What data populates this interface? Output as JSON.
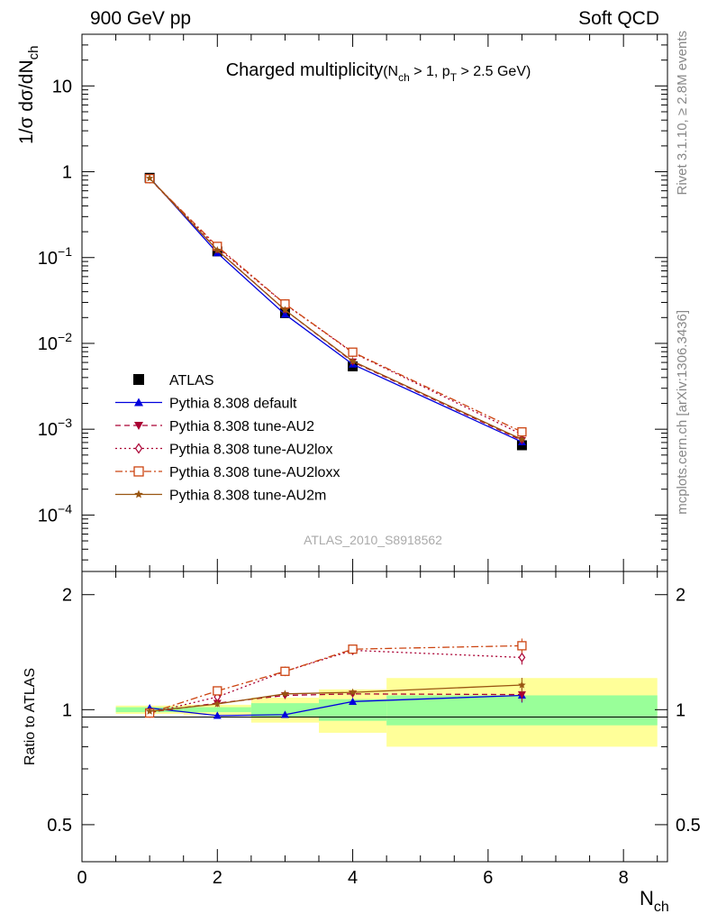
{
  "header": {
    "left": "900 GeV pp",
    "right": "Soft QCD"
  },
  "side_text": {
    "upper": "Rivet 3.1.10, ≥ 2.8M events",
    "lower": "mcplots.cern.ch [arXiv:1306.3436]"
  },
  "analysis_id": "ATLAS_2010_S8918562",
  "chart_data": [
    {
      "type": "line",
      "panel": "main",
      "title": "Charged multiplicity",
      "title_cut": "(N_ch > 1, p_T > 2.5 GeV)",
      "xlabel": "N_ch",
      "ylabel": "1/σ dσ/dN_ch",
      "yscale": "log",
      "xlim": [
        0,
        8.65
      ],
      "ylim": [
        2.2e-05,
        40
      ],
      "y_ticks": [
        {
          "v": 10,
          "label": "10"
        },
        {
          "v": 1,
          "label": "1"
        },
        {
          "v": 0.1,
          "label": "10^-1"
        },
        {
          "v": 0.01,
          "label": "10^-2"
        },
        {
          "v": 0.001,
          "label": "10^-3"
        },
        {
          "v": 0.0001,
          "label": "10^-4"
        }
      ],
      "legend_position": "middle-left",
      "series": [
        {
          "name": "ATLAS",
          "color": "#000000",
          "marker": "square-filled",
          "dash": "none",
          "x": [
            1,
            2,
            3,
            4,
            6.5
          ],
          "y": [
            0.85,
            0.118,
            0.0225,
            0.0054,
            0.00065
          ]
        },
        {
          "name": "Pythia 8.308 default",
          "color": "#0000dd",
          "marker": "triangle-up-filled",
          "dash": "solid",
          "x": [
            1,
            2,
            3,
            4,
            6.5
          ],
          "y": [
            0.855,
            0.113,
            0.0218,
            0.0057,
            0.00071
          ]
        },
        {
          "name": "Pythia 8.308 tune-AU2",
          "color": "#aa0033",
          "marker": "triangle-down-filled",
          "dash": "dashed",
          "x": [
            1,
            2,
            3,
            4,
            6.5
          ],
          "y": [
            0.83,
            0.123,
            0.0245,
            0.0061,
            0.00074
          ]
        },
        {
          "name": "Pythia 8.308 tune-AU2lox",
          "color": "#aa0033",
          "marker": "diamond-open",
          "dash": "dotted",
          "x": [
            1,
            2,
            3,
            4,
            6.5
          ],
          "y": [
            0.83,
            0.131,
            0.0287,
            0.0078,
            0.00087
          ]
        },
        {
          "name": "Pythia 8.308 tune-AU2loxx",
          "color": "#cc4411",
          "marker": "square-open",
          "dash": "dashdot",
          "x": [
            1,
            2,
            3,
            4,
            6.5
          ],
          "y": [
            0.83,
            0.135,
            0.0288,
            0.0079,
            0.00093
          ]
        },
        {
          "name": "Pythia 8.308 tune-AU2m",
          "color": "#995511",
          "marker": "star",
          "dash": "solid",
          "x": [
            1,
            2,
            3,
            4,
            6.5
          ],
          "y": [
            0.84,
            0.122,
            0.0245,
            0.0062,
            0.00076
          ]
        }
      ]
    },
    {
      "type": "line",
      "panel": "ratio",
      "ylabel": "Ratio to ATLAS",
      "xlabel": "N_ch",
      "yscale": "log",
      "xlim": [
        0,
        8.65
      ],
      "ylim": [
        0.4,
        2.3
      ],
      "x_ticks": [
        0,
        2,
        4,
        6,
        8
      ],
      "y_ticks": [
        {
          "v": 0.5,
          "label": "0.5"
        },
        {
          "v": 1,
          "label": "1"
        },
        {
          "v": 2,
          "label": "2"
        }
      ],
      "bands": [
        {
          "x0": 0.5,
          "x1": 1.5,
          "stat": [
            0.985,
            1.015
          ],
          "total": [
            0.975,
            1.025
          ]
        },
        {
          "x0": 1.5,
          "x1": 2.5,
          "stat": [
            0.985,
            1.015
          ],
          "total": [
            0.97,
            1.03
          ]
        },
        {
          "x0": 2.5,
          "x1": 3.5,
          "stat": [
            0.96,
            1.04
          ],
          "total": [
            0.925,
            1.075
          ]
        },
        {
          "x0": 3.5,
          "x1": 4.5,
          "stat": [
            0.935,
            1.065
          ],
          "total": [
            0.87,
            1.13
          ]
        },
        {
          "x0": 4.5,
          "x1": 8.5,
          "stat": [
            0.91,
            1.09
          ],
          "total": [
            0.8,
            1.21
          ]
        }
      ],
      "band_colors": {
        "stat": "#99ff99",
        "total": "#ffff99"
      },
      "series": [
        {
          "name": "Pythia 8.308 default",
          "x": [
            1,
            2,
            3,
            4,
            6.5
          ],
          "y": [
            1.01,
            0.965,
            0.97,
            1.05,
            1.09
          ]
        },
        {
          "name": "Pythia 8.308 tune-AU2",
          "x": [
            1,
            2,
            3,
            4,
            6.5
          ],
          "y": [
            0.985,
            1.04,
            1.09,
            1.1,
            1.095
          ]
        },
        {
          "name": "Pythia 8.308 tune-AU2lox",
          "x": [
            1,
            2,
            3,
            4,
            6.5
          ],
          "y": [
            0.98,
            1.08,
            1.26,
            1.43,
            1.37
          ]
        },
        {
          "name": "Pythia 8.308 tune-AU2loxx",
          "x": [
            1,
            2,
            3,
            4,
            6.5
          ],
          "y": [
            0.98,
            1.12,
            1.26,
            1.44,
            1.47
          ]
        },
        {
          "name": "Pythia 8.308 tune-AU2m",
          "x": [
            1,
            2,
            3,
            4,
            6.5
          ],
          "y": [
            0.99,
            1.035,
            1.1,
            1.11,
            1.16
          ]
        }
      ]
    }
  ]
}
